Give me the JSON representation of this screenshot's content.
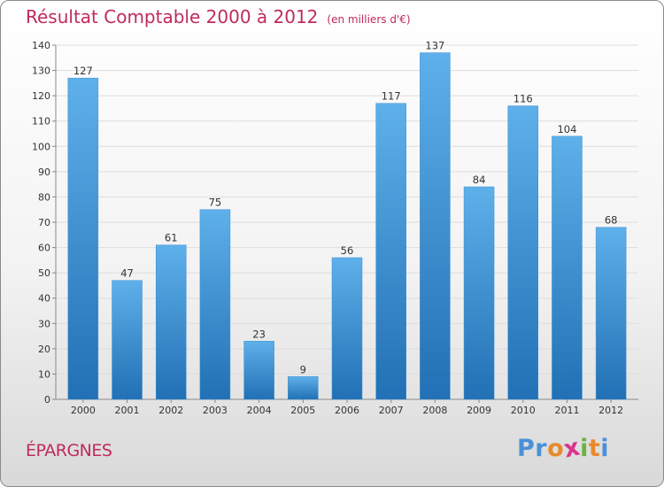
{
  "header": {
    "title": "Résultat Comptable 2000 à 2012",
    "subtitle": "(en milliers d'€)"
  },
  "footer": {
    "location": "ÉPARGNES",
    "brand": "Proxiti",
    "brand_letters": [
      "P",
      "r",
      "o",
      "x",
      "i",
      "t",
      "i"
    ],
    "brand_colors": [
      "#4a90d9",
      "#4a90d9",
      "#e8892a",
      "#d9348b",
      "#6bb33e",
      "#e8892a",
      "#4a90d9"
    ]
  },
  "chart_data": {
    "type": "bar",
    "title": "Résultat Comptable 2000 à 2012",
    "subtitle": "(en milliers d'€)",
    "xlabel": "",
    "ylabel": "",
    "categories": [
      "2000",
      "2001",
      "2002",
      "2003",
      "2004",
      "2005",
      "2006",
      "2007",
      "2008",
      "2009",
      "2010",
      "2011",
      "2012"
    ],
    "values": [
      127,
      47,
      61,
      75,
      23,
      9,
      56,
      117,
      137,
      84,
      116,
      104,
      68
    ],
    "ylim": [
      0,
      140
    ],
    "yticks": [
      0,
      10,
      20,
      30,
      40,
      50,
      60,
      70,
      80,
      90,
      100,
      110,
      120,
      130,
      140
    ],
    "grid": true,
    "colors": {
      "bar_top": "#5eb0ea",
      "bar_bottom": "#2270b5",
      "grid": "#dddddd",
      "axis": "#888888"
    }
  }
}
